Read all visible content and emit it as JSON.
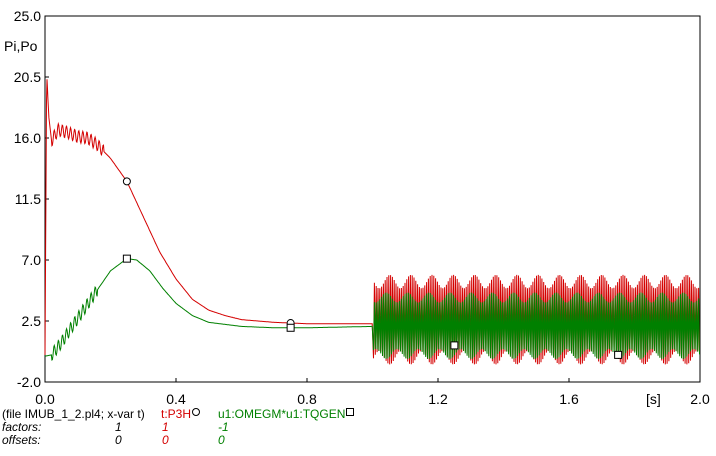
{
  "chart_data": {
    "type": "line",
    "ylabel": "Pi,Po",
    "xunit": "[s]",
    "xlim": [
      0.0,
      2.0
    ],
    "ylim": [
      -2.0,
      25.0
    ],
    "xticks": [
      "0.0",
      "0.4",
      "0.8",
      "1.2",
      "1.6",
      "2.0"
    ],
    "yticks": [
      "-2.0",
      "2.5",
      "7.0",
      "11.5",
      "16.0",
      "20.5",
      "25.0"
    ],
    "series": [
      {
        "name": "t:P3H",
        "color": "#d40000",
        "marker": "circle",
        "marker_x": [
          0.25,
          0.75
        ],
        "points": [
          [
            0.0,
            0.0
          ],
          [
            0.005,
            20.8
          ],
          [
            0.012,
            17.5
          ],
          [
            0.02,
            15.8
          ],
          [
            0.04,
            16.6
          ],
          [
            0.07,
            16.4
          ],
          [
            0.1,
            16.1
          ],
          [
            0.13,
            16.0
          ],
          [
            0.16,
            15.5
          ],
          [
            0.2,
            14.5
          ],
          [
            0.25,
            12.8
          ],
          [
            0.3,
            10.2
          ],
          [
            0.35,
            7.6
          ],
          [
            0.4,
            5.6
          ],
          [
            0.45,
            4.1
          ],
          [
            0.5,
            3.3
          ],
          [
            0.55,
            2.9
          ],
          [
            0.6,
            2.6
          ],
          [
            0.7,
            2.4
          ],
          [
            0.8,
            2.3
          ],
          [
            1.0,
            2.3
          ],
          [
            1.005,
            5.0
          ],
          [
            1.1,
            5.3
          ],
          [
            1.3,
            5.7
          ],
          [
            2.0,
            5.8
          ]
        ],
        "oscillation": {
          "from": 1.0,
          "to": 2.0,
          "low": -0.7,
          "high": 5.9
        }
      },
      {
        "name": "u1:OMEGM*u1:TQGEN",
        "color": "#008000",
        "marker": "square",
        "marker_x": [
          0.25,
          0.75,
          1.25,
          1.75
        ],
        "points": [
          [
            0.0,
            -0.1
          ],
          [
            0.02,
            0.0
          ],
          [
            0.05,
            0.9
          ],
          [
            0.08,
            2.0
          ],
          [
            0.12,
            3.4
          ],
          [
            0.16,
            4.8
          ],
          [
            0.2,
            6.2
          ],
          [
            0.25,
            7.1
          ],
          [
            0.28,
            7.0
          ],
          [
            0.32,
            6.2
          ],
          [
            0.36,
            4.9
          ],
          [
            0.4,
            3.8
          ],
          [
            0.45,
            2.9
          ],
          [
            0.5,
            2.4
          ],
          [
            0.6,
            2.1
          ],
          [
            0.7,
            2.0
          ],
          [
            0.8,
            2.0
          ],
          [
            1.0,
            2.1
          ],
          [
            2.0,
            2.1
          ]
        ],
        "oscillation": {
          "from": 1.0,
          "to": 2.0,
          "low": -0.3,
          "high": 4.6
        }
      }
    ]
  },
  "footer": {
    "file_label": "(file IMUB_1_2.pl4; x-var t)",
    "series1": "t:P3H",
    "series2": "u1:OMEGM*u1:TQGEN",
    "factors_label": "factors:",
    "offsets_label": "offsets:",
    "factor_x": "1",
    "factor_s1": "1",
    "factor_s2": "-1",
    "offset_x": "0",
    "offset_s1": "0",
    "offset_s2": "0"
  }
}
